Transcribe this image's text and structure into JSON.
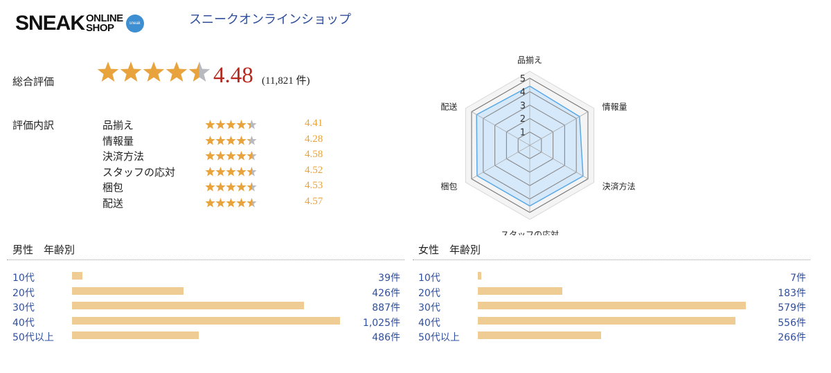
{
  "header": {
    "logo_main": "SNEAK",
    "logo_sub_top": "ONLINE",
    "logo_sub_bottom": "SHOP",
    "logo_badge": "sneak",
    "shop_name": "スニークオンラインショップ"
  },
  "overall": {
    "label": "総合評価",
    "score": "4.48",
    "count_text": "(11,821 件)",
    "rating": 4.48
  },
  "breakdown": {
    "label": "評価内訳",
    "items": [
      {
        "name": "品揃え",
        "score": "4.41",
        "rating": 4.41
      },
      {
        "name": "情報量",
        "score": "4.28",
        "rating": 4.28
      },
      {
        "name": "決済方法",
        "score": "4.58",
        "rating": 4.58
      },
      {
        "name": "スタッフの応対",
        "score": "4.52",
        "rating": 4.52
      },
      {
        "name": "梱包",
        "score": "4.53",
        "rating": 4.53
      },
      {
        "name": "配送",
        "score": "4.57",
        "rating": 4.57
      }
    ]
  },
  "radar": {
    "axes": [
      "品揃え",
      "情報量",
      "決済方法",
      "スタッフの応対",
      "梱包",
      "配送"
    ],
    "values": [
      4.41,
      4.28,
      4.58,
      4.52,
      4.53,
      4.57
    ],
    "ticks": [
      "1",
      "2",
      "3",
      "4",
      "5"
    ],
    "max": 5,
    "fill_color": "#d6e9fb",
    "line_color": "#5aa9e6"
  },
  "male": {
    "title": "男性　年齢別",
    "rows": [
      {
        "label": "10代",
        "count_text": "39件",
        "value": 39
      },
      {
        "label": "20代",
        "count_text": "426件",
        "value": 426
      },
      {
        "label": "30代",
        "count_text": "887件",
        "value": 887
      },
      {
        "label": "40代",
        "count_text": "1,025件",
        "value": 1025
      },
      {
        "label": "50代以上",
        "count_text": "486件",
        "value": 486
      }
    ]
  },
  "female": {
    "title": "女性　年齢別",
    "rows": [
      {
        "label": "10代",
        "count_text": "7件",
        "value": 7
      },
      {
        "label": "20代",
        "count_text": "183件",
        "value": 183
      },
      {
        "label": "30代",
        "count_text": "579件",
        "value": 579
      },
      {
        "label": "40代",
        "count_text": "556件",
        "value": 556
      },
      {
        "label": "50代以上",
        "count_text": "266件",
        "value": 266
      }
    ]
  },
  "colors": {
    "star_filled": "#e8a33c",
    "star_empty": "#b9b9c0",
    "bar": "#f0cc95",
    "score_red": "#b7281e",
    "link_blue": "#2f4e9b"
  }
}
